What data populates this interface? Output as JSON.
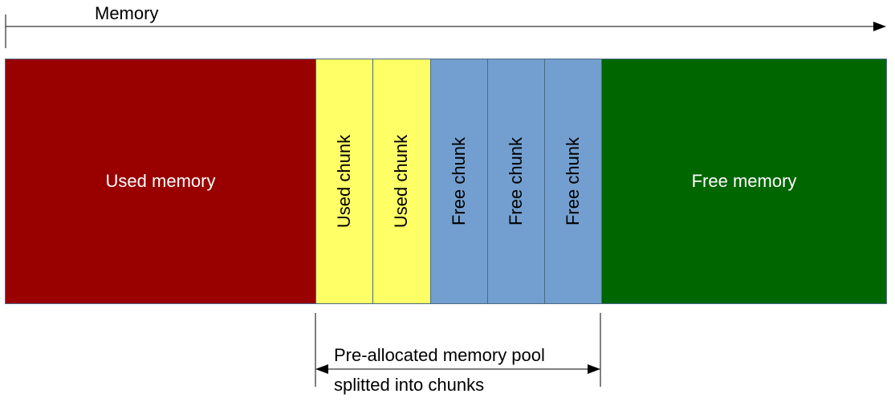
{
  "axis": {
    "label": "Memory"
  },
  "segments": {
    "used_memory": "Used memory",
    "used_chunk_1": "Used chunk",
    "used_chunk_2": "Used chunk",
    "free_chunk_1": "Free chunk",
    "free_chunk_2": "Free chunk",
    "free_chunk_3": "Free chunk",
    "free_memory": "Free memory"
  },
  "pool": {
    "line1": "Pre-allocated memory pool",
    "line2": "splitted into chunks"
  },
  "colors": {
    "used_memory": "#990000",
    "used_chunk": "#ffff66",
    "free_chunk": "#729fcf",
    "free_memory": "#006600",
    "border": "#4a6a86"
  }
}
